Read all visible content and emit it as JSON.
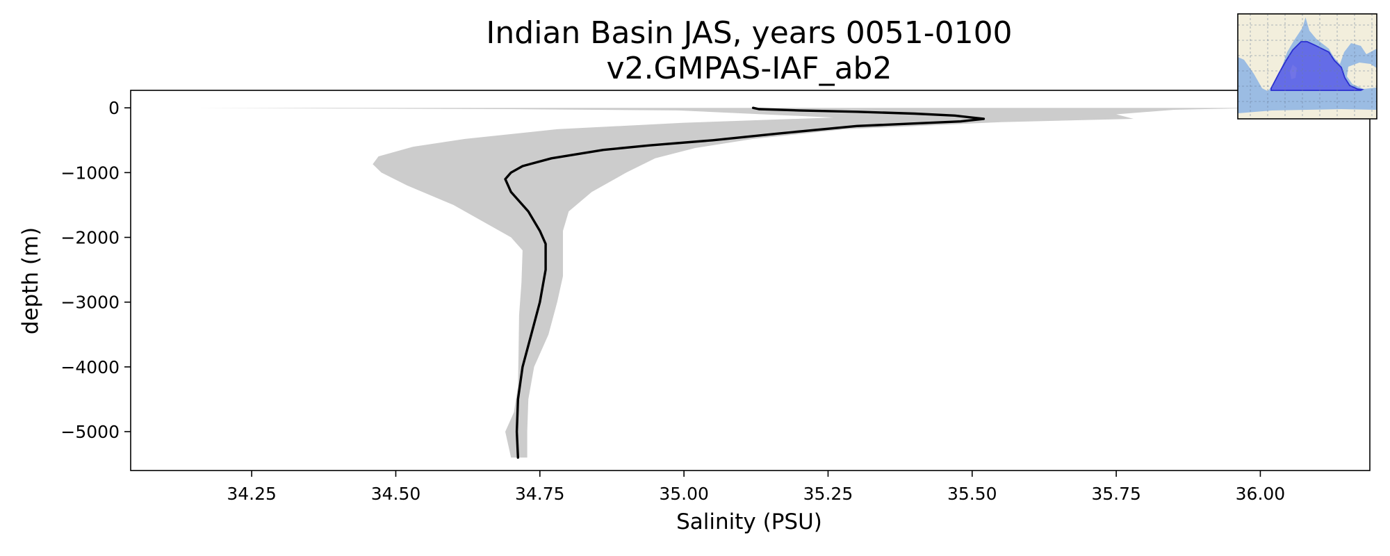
{
  "chart_data": {
    "type": "line",
    "title_line1": "Indian Basin JAS, years 0051-0100",
    "title_line2": "v2.GMPAS-IAF_ab2",
    "xlabel": "Salinity (PSU)",
    "ylabel": "depth (m)",
    "xlim": [
      34.04,
      36.19
    ],
    "ylim": [
      -5600,
      270
    ],
    "xticks": [
      34.25,
      34.5,
      34.75,
      35.0,
      35.25,
      35.5,
      35.75,
      36.0
    ],
    "xtick_labels": [
      "34.25",
      "34.50",
      "34.75",
      "35.00",
      "35.25",
      "35.50",
      "35.75",
      "36.00"
    ],
    "yticks": [
      0,
      -1000,
      -2000,
      -3000,
      -4000,
      -5000
    ],
    "ytick_labels": [
      "0",
      "−1000",
      "−2000",
      "−3000",
      "−4000",
      "−5000"
    ],
    "grid": false,
    "series": [
      {
        "kind": "mean",
        "color": "#000000",
        "points": [
          [
            35.12,
            0
          ],
          [
            35.13,
            -20
          ],
          [
            35.2,
            -40
          ],
          [
            35.3,
            -60
          ],
          [
            35.4,
            -90
          ],
          [
            35.47,
            -120
          ],
          [
            35.52,
            -170
          ],
          [
            35.48,
            -210
          ],
          [
            35.3,
            -280
          ],
          [
            35.16,
            -400
          ],
          [
            35.05,
            -500
          ],
          [
            34.94,
            -580
          ],
          [
            34.86,
            -650
          ],
          [
            34.77,
            -780
          ],
          [
            34.72,
            -900
          ],
          [
            34.7,
            -1000
          ],
          [
            34.69,
            -1100
          ],
          [
            34.7,
            -1300
          ],
          [
            34.73,
            -1600
          ],
          [
            34.75,
            -1900
          ],
          [
            34.76,
            -2100
          ],
          [
            34.76,
            -2500
          ],
          [
            34.75,
            -3000
          ],
          [
            34.735,
            -3500
          ],
          [
            34.72,
            -4000
          ],
          [
            34.712,
            -4500
          ],
          [
            34.71,
            -5000
          ],
          [
            34.712,
            -5400
          ]
        ]
      }
    ],
    "spread": {
      "color": "#cccccc",
      "upper": [
        [
          36.0,
          0
        ],
        [
          35.85,
          -30
        ],
        [
          35.75,
          -100
        ],
        [
          35.78,
          -170
        ],
        [
          35.55,
          -220
        ],
        [
          35.28,
          -330
        ],
        [
          35.12,
          -480
        ],
        [
          35.02,
          -620
        ],
        [
          34.95,
          -780
        ],
        [
          34.9,
          -1000
        ],
        [
          34.84,
          -1300
        ],
        [
          34.8,
          -1600
        ],
        [
          34.79,
          -1900
        ],
        [
          34.79,
          -2200
        ],
        [
          34.79,
          -2600
        ],
        [
          34.78,
          -3000
        ],
        [
          34.765,
          -3500
        ],
        [
          34.74,
          -4000
        ],
        [
          34.73,
          -4500
        ],
        [
          34.728,
          -5000
        ],
        [
          34.728,
          -5400
        ]
      ],
      "lower": [
        [
          34.15,
          0
        ],
        [
          34.4,
          -10
        ],
        [
          34.7,
          -20
        ],
        [
          34.99,
          -40
        ],
        [
          35.26,
          -150
        ],
        [
          35.0,
          -230
        ],
        [
          34.78,
          -330
        ],
        [
          34.62,
          -480
        ],
        [
          34.53,
          -600
        ],
        [
          34.47,
          -750
        ],
        [
          34.46,
          -870
        ],
        [
          34.475,
          -1000
        ],
        [
          34.52,
          -1200
        ],
        [
          34.6,
          -1500
        ],
        [
          34.66,
          -1800
        ],
        [
          34.7,
          -2000
        ],
        [
          34.72,
          -2200
        ],
        [
          34.718,
          -2700
        ],
        [
          34.714,
          -3200
        ],
        [
          34.713,
          -3800
        ],
        [
          34.712,
          -4300
        ],
        [
          34.705,
          -4700
        ],
        [
          34.69,
          -5000
        ],
        [
          34.7,
          -5400
        ]
      ]
    },
    "inset_map": {
      "ocean_color": "#9bbce3",
      "land_color": "#f2eedc",
      "region_color": "#5a5ee8"
    }
  }
}
